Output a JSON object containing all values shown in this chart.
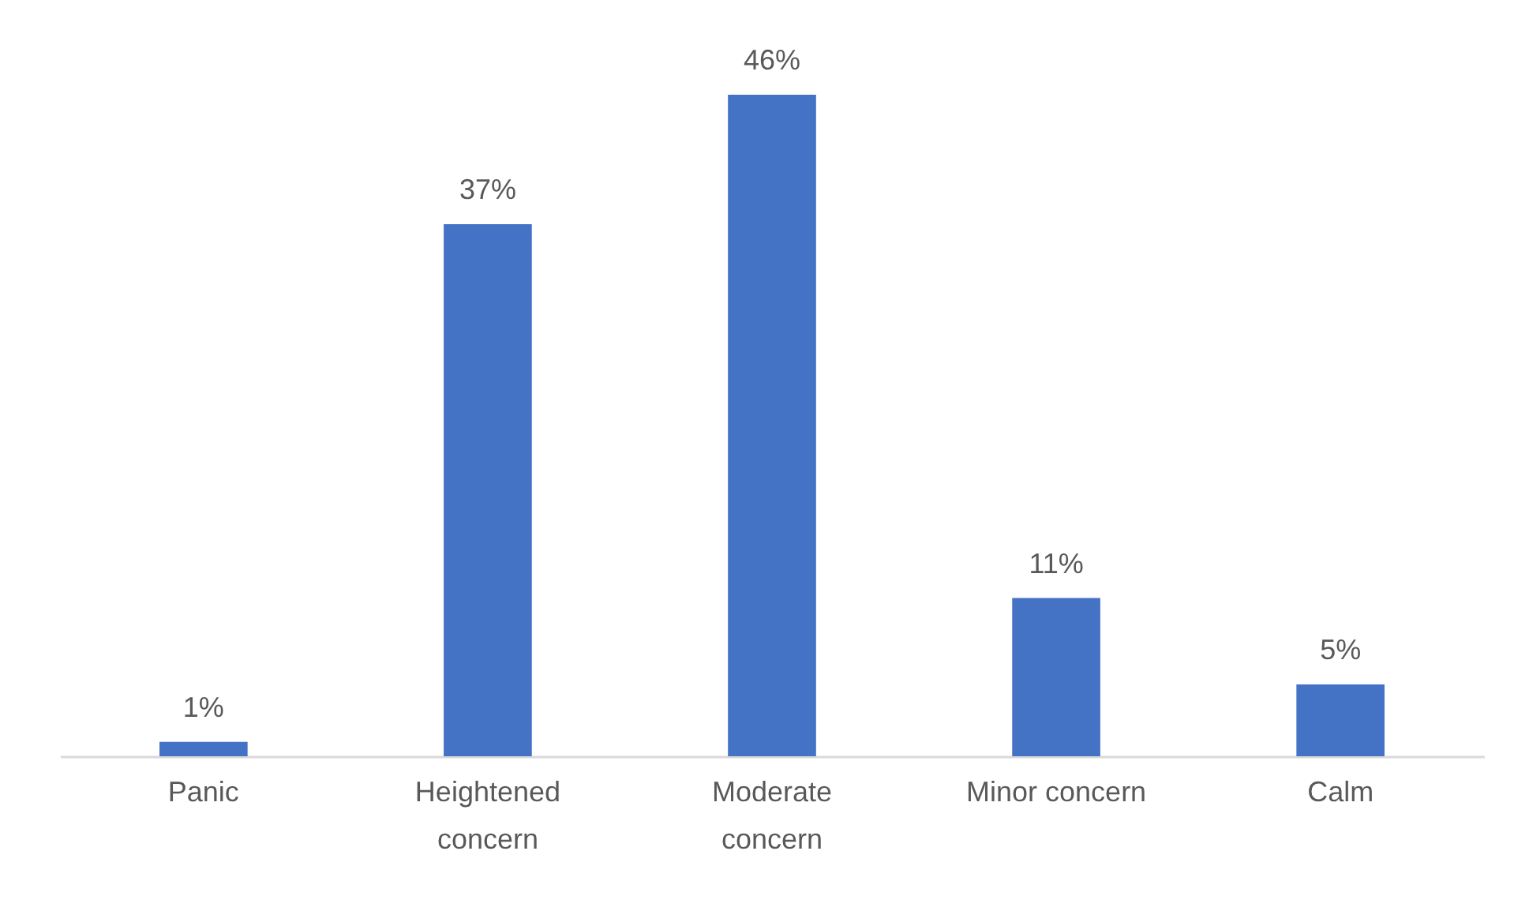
{
  "chart_data": {
    "type": "bar",
    "categories": [
      "Panic",
      "Heightened concern",
      "Moderate concern",
      "Minor concern",
      "Calm"
    ],
    "values": [
      1,
      37,
      46,
      11,
      5
    ],
    "value_labels": [
      "1%",
      "37%",
      "46%",
      "11%",
      "5%"
    ],
    "color": "#4472c4",
    "grid": false
  }
}
